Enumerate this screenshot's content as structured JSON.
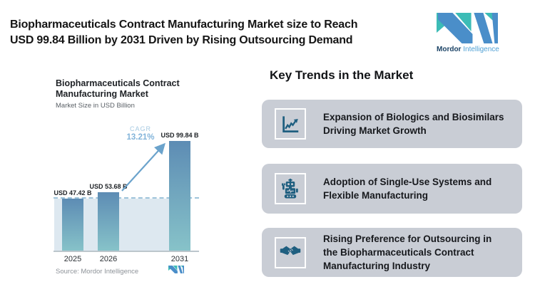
{
  "header": {
    "title_line1": "Biopharmaceuticals Contract Manufacturing Market size to Reach",
    "title_line2": "USD 99.84 Billion by 2031 Driven by Rising Outsourcing Demand",
    "logo": {
      "brand_bold": "Mordor",
      "brand_light": "Intelligence",
      "blue": "#4a8ec9",
      "teal": "#3cbcb6"
    }
  },
  "chart_data": {
    "type": "bar",
    "title_line1": "Biopharmaceuticals Contract",
    "title_line2": "Manufacturing Market",
    "subtitle": "Market Size in USD Billion",
    "categories": [
      "2025",
      "2026",
      "2031"
    ],
    "values": [
      47.42,
      53.68,
      99.84
    ],
    "value_labels": [
      "USD 47.42 B",
      "USD 53.68 B",
      "USD 99.84 B"
    ],
    "ylabel": "Market Size in USD Billion",
    "cagr_label": "CAGR",
    "cagr_value": "13.21%",
    "annotation": "CAGR 13.21% growth arrow from 2026 to 2031 bar",
    "reference_line": "dashed line at 2025 level (47.42)",
    "source": "Source: Mordor Intelligence",
    "bar_gradient_top": "#5d8cb4",
    "bar_gradient_bottom": "#87c3c9",
    "band_color": "#dde8f0",
    "dash_color": "#9ec4da",
    "arrow_color": "#6ba3cc",
    "grid": false,
    "legend": false
  },
  "trends": {
    "heading": "Key Trends in the Market",
    "card_bg": "#c9cdd5",
    "icon_color": "#1f5f80",
    "cards": [
      {
        "icon": "line-chart-icon",
        "text": "Expansion of Biologics and Biosimilars Driving Market Growth",
        "lines": [
          "Expansion of Biologics and Biosimilars",
          "Driving Market Growth"
        ]
      },
      {
        "icon": "robot-icon",
        "text": "Adoption of Single-Use Systems and Flexible Manufacturing",
        "lines": [
          "Adoption of Single-Use Systems and",
          "Flexible Manufacturing"
        ]
      },
      {
        "icon": "handshake-icon",
        "text": "Rising Preference for Outsourcing in the Biopharmaceuticals Contract Manufacturing Industry",
        "lines": [
          "Rising Preference for Outsourcing in",
          "the Biopharmaceuticals Contract",
          "Manufacturing Industry"
        ]
      }
    ]
  }
}
